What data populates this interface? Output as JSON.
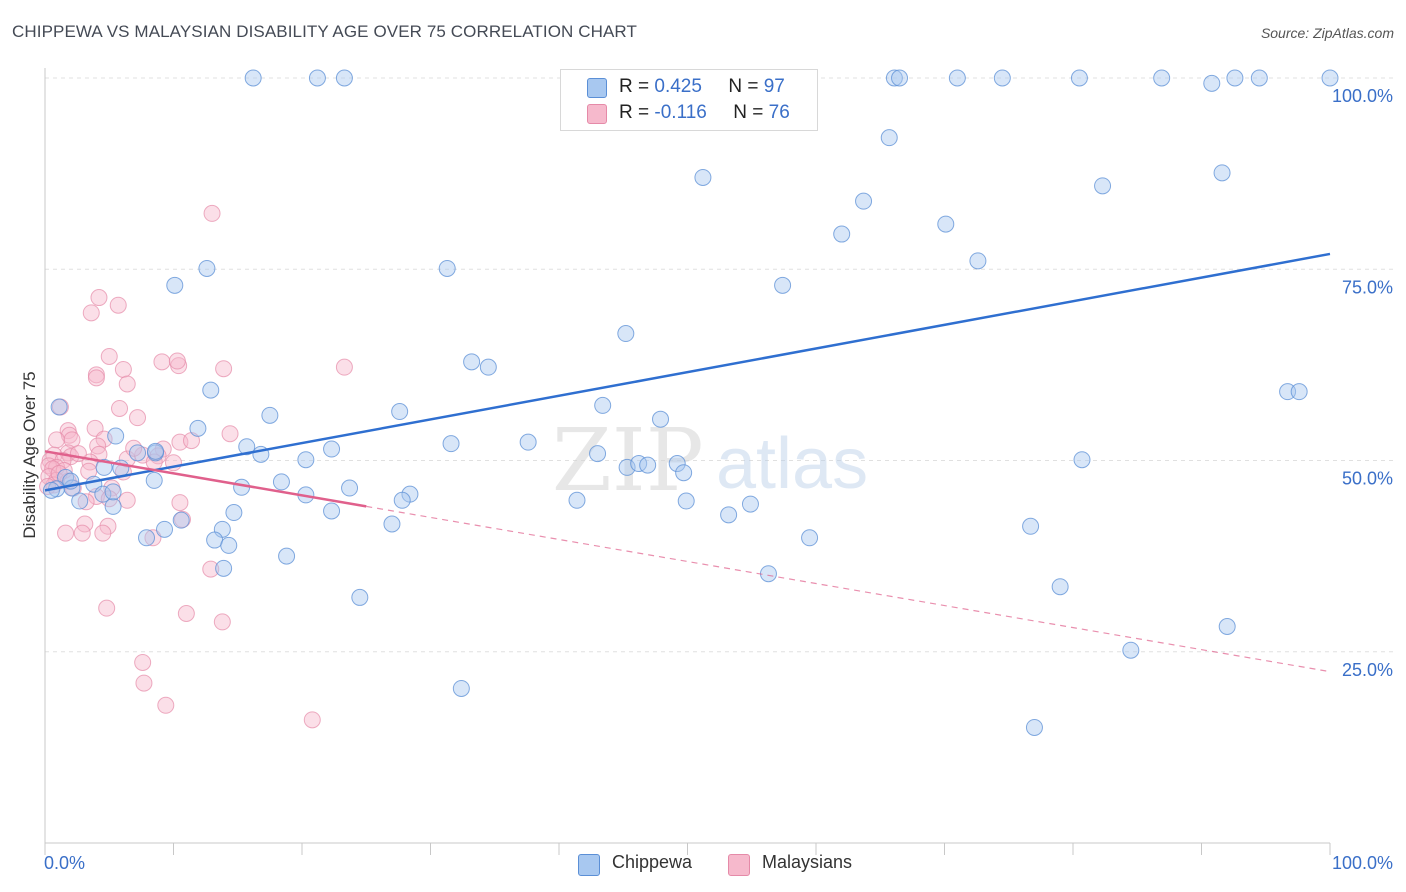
{
  "header": {
    "title": "CHIPPEWA VS MALAYSIAN DISABILITY AGE OVER 75 CORRELATION CHART",
    "source": "Source: ZipAtlas.com"
  },
  "watermark": {
    "zip": "ZIP",
    "atlas": "atlas"
  },
  "stats": {
    "chippewa": {
      "r_label": "R =",
      "r_value": "0.425",
      "n_label": "N =",
      "n_value": "97"
    },
    "malaysians": {
      "r_label": "R =",
      "r_value": "-0.116",
      "n_label": "N =",
      "n_value": "76"
    }
  },
  "legend": {
    "chippewa": "Chippewa",
    "malaysians": "Malaysians"
  },
  "colors": {
    "chippewa_fill": "#a8c8f0",
    "chippewa_stroke": "#5b8fd6",
    "chippewa_line": "#2f6fd0",
    "malaysians_fill": "#f6b9cc",
    "malaysians_stroke": "#e58aa8",
    "malaysians_line": "#e0608c",
    "tick_label": "#3a6fc8",
    "grid": "#e0e0e0"
  },
  "chart_data": {
    "type": "scatter",
    "title": "CHIPPEWA VS MALAYSIAN DISABILITY AGE OVER 75 CORRELATION CHART",
    "xlabel": "",
    "ylabel": "Disability Age Over 75",
    "xlim": [
      0,
      100
    ],
    "ylim": [
      0,
      100
    ],
    "x_tick_labels": [
      "0.0%",
      "100.0%"
    ],
    "y_ticks": [
      25,
      50,
      75,
      100
    ],
    "y_tick_labels": [
      "25.0%",
      "50.0%",
      "75.0%",
      "100.0%"
    ],
    "grid": true,
    "series": [
      {
        "name": "Chippewa",
        "r": 0.425,
        "n": 97,
        "trend": {
          "x": [
            0,
            100
          ],
          "y": [
            46.1,
            77.0
          ],
          "style": "solid"
        },
        "points": [
          [
            16.2,
            100
          ],
          [
            21.2,
            100
          ],
          [
            23.3,
            100
          ],
          [
            66.1,
            100
          ],
          [
            66.5,
            100
          ],
          [
            71.0,
            100
          ],
          [
            74.5,
            100
          ],
          [
            80.5,
            100
          ],
          [
            86.9,
            100
          ],
          [
            90.8,
            99.3
          ],
          [
            92.6,
            100
          ],
          [
            94.5,
            100
          ],
          [
            100,
            100
          ],
          [
            65.7,
            92.2
          ],
          [
            51.2,
            87.0
          ],
          [
            91.6,
            87.6
          ],
          [
            82.3,
            85.9
          ],
          [
            63.7,
            83.9
          ],
          [
            62.0,
            79.6
          ],
          [
            70.1,
            80.9
          ],
          [
            72.6,
            76.1
          ],
          [
            12.6,
            75.1
          ],
          [
            31.3,
            75.1
          ],
          [
            10.1,
            72.9
          ],
          [
            57.4,
            72.9
          ],
          [
            45.2,
            66.6
          ],
          [
            33.2,
            62.9
          ],
          [
            34.5,
            62.2
          ],
          [
            96.7,
            59.0
          ],
          [
            97.6,
            59.0
          ],
          [
            12.9,
            59.2
          ],
          [
            1.1,
            57.0
          ],
          [
            27.6,
            56.4
          ],
          [
            43.4,
            57.2
          ],
          [
            17.5,
            55.9
          ],
          [
            47.9,
            55.4
          ],
          [
            11.9,
            54.2
          ],
          [
            5.5,
            53.2
          ],
          [
            37.6,
            52.4
          ],
          [
            31.6,
            52.2
          ],
          [
            8.6,
            51.0
          ],
          [
            15.7,
            51.8
          ],
          [
            22.3,
            51.5
          ],
          [
            7.2,
            51.0
          ],
          [
            16.8,
            50.8
          ],
          [
            43.0,
            50.9
          ],
          [
            20.3,
            50.1
          ],
          [
            80.7,
            50.1
          ],
          [
            45.3,
            49.1
          ],
          [
            46.2,
            49.6
          ],
          [
            46.9,
            49.4
          ],
          [
            49.2,
            49.6
          ],
          [
            4.6,
            49.1
          ],
          [
            5.9,
            49.0
          ],
          [
            49.7,
            48.4
          ],
          [
            1.6,
            47.8
          ],
          [
            8.5,
            47.4
          ],
          [
            18.4,
            47.2
          ],
          [
            3.8,
            46.9
          ],
          [
            0.9,
            46.3
          ],
          [
            15.3,
            46.5
          ],
          [
            23.7,
            46.4
          ],
          [
            0.5,
            46.1
          ],
          [
            2.1,
            46.4
          ],
          [
            4.5,
            45.6
          ],
          [
            20.3,
            45.5
          ],
          [
            28.4,
            45.6
          ],
          [
            2.7,
            44.7
          ],
          [
            27.8,
            44.8
          ],
          [
            41.4,
            44.8
          ],
          [
            49.9,
            44.7
          ],
          [
            5.3,
            44.0
          ],
          [
            14.7,
            43.2
          ],
          [
            22.3,
            43.4
          ],
          [
            54.9,
            44.3
          ],
          [
            53.2,
            42.9
          ],
          [
            10.6,
            42.2
          ],
          [
            27.0,
            41.7
          ],
          [
            9.3,
            41.0
          ],
          [
            13.8,
            41.0
          ],
          [
            76.7,
            41.4
          ],
          [
            7.9,
            39.9
          ],
          [
            13.2,
            39.6
          ],
          [
            14.3,
            38.9
          ],
          [
            59.5,
            39.9
          ],
          [
            18.8,
            37.5
          ],
          [
            13.9,
            35.9
          ],
          [
            56.3,
            35.2
          ],
          [
            79.0,
            33.5
          ],
          [
            24.5,
            32.1
          ],
          [
            92.0,
            28.3
          ],
          [
            84.5,
            25.2
          ],
          [
            32.4,
            20.2
          ],
          [
            77.0,
            15.1
          ],
          [
            8.6,
            51.2
          ],
          [
            2.0,
            47.3
          ],
          [
            5.3,
            45.9
          ]
        ]
      },
      {
        "name": "Malaysians",
        "r": -0.116,
        "n": 76,
        "trend": {
          "x": [
            0,
            100
          ],
          "y": [
            51.2,
            22.4
          ],
          "style": "solid to 25, dashed after"
        },
        "points": [
          [
            13.0,
            82.3
          ],
          [
            4.2,
            71.3
          ],
          [
            5.7,
            70.3
          ],
          [
            3.6,
            69.3
          ],
          [
            5.0,
            63.6
          ],
          [
            9.1,
            62.9
          ],
          [
            10.4,
            62.4
          ],
          [
            10.3,
            63.0
          ],
          [
            23.3,
            62.2
          ],
          [
            13.9,
            62.0
          ],
          [
            6.1,
            61.9
          ],
          [
            4.0,
            61.2
          ],
          [
            4.0,
            60.8
          ],
          [
            6.4,
            60.0
          ],
          [
            1.2,
            57.0
          ],
          [
            5.8,
            56.8
          ],
          [
            7.2,
            55.6
          ],
          [
            14.4,
            53.5
          ],
          [
            1.8,
            53.9
          ],
          [
            1.9,
            53.3
          ],
          [
            3.9,
            54.2
          ],
          [
            0.9,
            52.7
          ],
          [
            2.1,
            52.7
          ],
          [
            10.5,
            52.4
          ],
          [
            11.4,
            52.6
          ],
          [
            4.6,
            52.8
          ],
          [
            4.1,
            51.9
          ],
          [
            9.2,
            51.5
          ],
          [
            1.8,
            51.0
          ],
          [
            4.2,
            50.8
          ],
          [
            0.7,
            50.7
          ],
          [
            6.4,
            50.2
          ],
          [
            7.6,
            50.7
          ],
          [
            8.8,
            50.6
          ],
          [
            2.0,
            50.5
          ],
          [
            0.4,
            50.0
          ],
          [
            1.4,
            50.0
          ],
          [
            3.5,
            49.8
          ],
          [
            8.5,
            49.8
          ],
          [
            10.0,
            49.7
          ],
          [
            0.3,
            49.3
          ],
          [
            0.9,
            49.1
          ],
          [
            0.6,
            48.9
          ],
          [
            1.5,
            48.7
          ],
          [
            3.4,
            48.6
          ],
          [
            6.1,
            48.5
          ],
          [
            0.3,
            47.9
          ],
          [
            0.9,
            47.4
          ],
          [
            1.8,
            47.3
          ],
          [
            0.7,
            46.8
          ],
          [
            5.2,
            46.4
          ],
          [
            2.2,
            46.4
          ],
          [
            4.0,
            45.3
          ],
          [
            5.0,
            45.0
          ],
          [
            3.2,
            44.6
          ],
          [
            6.4,
            44.8
          ],
          [
            10.5,
            44.5
          ],
          [
            3.1,
            41.7
          ],
          [
            4.9,
            41.4
          ],
          [
            1.6,
            40.5
          ],
          [
            2.9,
            40.5
          ],
          [
            4.5,
            40.5
          ],
          [
            8.4,
            39.9
          ],
          [
            10.7,
            42.3
          ],
          [
            12.9,
            35.8
          ],
          [
            4.8,
            30.7
          ],
          [
            11.0,
            30.0
          ],
          [
            13.8,
            28.9
          ],
          [
            7.6,
            23.6
          ],
          [
            7.7,
            20.9
          ],
          [
            9.4,
            18.0
          ],
          [
            20.8,
            16.1
          ],
          [
            2.6,
            50.9
          ],
          [
            1.1,
            48.3
          ],
          [
            0.2,
            46.6
          ],
          [
            6.9,
            51.6
          ]
        ]
      }
    ]
  }
}
